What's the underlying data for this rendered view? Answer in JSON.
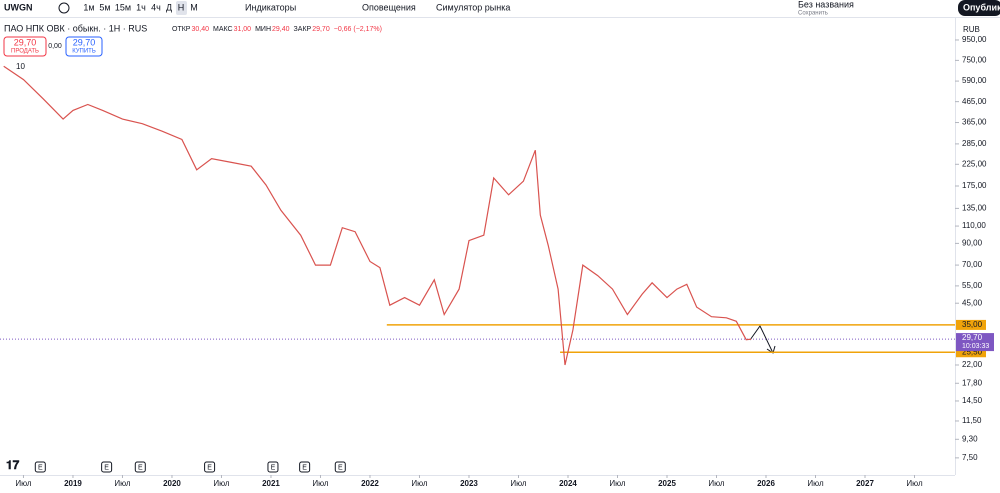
{
  "toolbar": {
    "symbol": "UWGN",
    "intervals": [
      "1м",
      "5м",
      "15м",
      "1ч",
      "4ч",
      "Д",
      "Н",
      "М"
    ],
    "active_interval": 6,
    "indicators": "Индикаторы",
    "alerts": "Оповещения",
    "replay": "Симулятор рынка",
    "layout_name": "Без названия",
    "save": "Сохранить",
    "publish": "Опубликов"
  },
  "legend": {
    "title": "ПАО НПК ОВК · обыкн. · 1Н · RUS",
    "ohlc": [
      {
        "label": "ОТКР",
        "value": "30,40"
      },
      {
        "label": "МАКС",
        "value": "31,00"
      },
      {
        "label": "МИН",
        "value": "29,40"
      },
      {
        "label": "ЗАКР",
        "value": "29,70"
      }
    ],
    "change": "−0,66 (−2,17%)"
  },
  "trade": {
    "sell_price": "29,70",
    "sell": "ПРОДАТЬ",
    "spread": "0,00",
    "buy_price": "29,70",
    "buy": "КУПИТЬ"
  },
  "volume_toggle": "10",
  "chart_data": {
    "type": "line",
    "currency": "RUB",
    "log_scale": true,
    "color": "#d9534f",
    "x": [
      2018.3,
      2018.5,
      2018.7,
      2018.9,
      2019.0,
      2019.15,
      2019.3,
      2019.5,
      2019.7,
      2019.9,
      2020.1,
      2020.25,
      2020.4,
      2020.6,
      2020.8,
      2020.95,
      2021.1,
      2021.3,
      2021.45,
      2021.6,
      2021.72,
      2021.85,
      2022.0,
      2022.1,
      2022.2,
      2022.35,
      2022.5,
      2022.65,
      2022.75,
      2022.9,
      2023.0,
      2023.15,
      2023.25,
      2023.4,
      2023.55,
      2023.67,
      2023.72,
      2023.8,
      2023.9,
      2023.97,
      2024.05,
      2024.15,
      2024.3,
      2024.45,
      2024.6,
      2024.75,
      2024.85,
      2025.0,
      2025.1,
      2025.2,
      2025.3,
      2025.45,
      2025.6,
      2025.7,
      2025.8,
      2025.85
    ],
    "values": [
      700,
      600,
      480,
      380,
      420,
      450,
      420,
      380,
      360,
      330,
      300,
      211,
      240,
      230,
      220,
      177,
      132,
      99,
      70,
      70,
      108,
      103,
      73,
      68,
      44,
      48,
      44,
      59,
      39.5,
      53,
      93,
      99,
      192,
      158,
      185,
      265,
      125,
      88,
      53,
      22,
      33,
      70,
      62,
      53,
      39.5,
      50,
      57,
      48,
      53,
      56,
      43,
      38.5,
      38,
      36.5,
      29.5,
      29.7
    ],
    "xlim": [
      2018.263,
      2027.909
    ],
    "xticks": [
      {
        "value": 2018.5,
        "label": "Июл"
      },
      2019,
      {
        "value": 2019.5,
        "label": "Июл"
      },
      2020,
      {
        "value": 2020.5,
        "label": "Июл"
      },
      2021,
      {
        "value": 2021.5,
        "label": "Июл"
      },
      2022,
      {
        "value": 2022.5,
        "label": "Июл"
      },
      2023,
      {
        "value": 2023.5,
        "label": "Июл"
      },
      2024,
      {
        "value": 2024.5,
        "label": "Июл"
      },
      2025,
      {
        "value": 2025.5,
        "label": "Июл"
      },
      2026,
      {
        "value": 2026.5,
        "label": "Июл"
      },
      2027,
      {
        "value": 2027.5,
        "label": "Июл"
      }
    ],
    "ylim": [
      6.15,
      972
    ],
    "yticks": [
      {
        "value": 950,
        "label": "950,00"
      },
      {
        "value": 750,
        "label": "750,00"
      },
      {
        "value": 590,
        "label": "590,00"
      },
      {
        "value": 465,
        "label": "465,00"
      },
      {
        "value": 365,
        "label": "365,00"
      },
      {
        "value": 285,
        "label": "285,00"
      },
      {
        "value": 225,
        "label": "225,00"
      },
      {
        "value": 175,
        "label": "175,00"
      },
      {
        "value": 135,
        "label": "135,00"
      },
      {
        "value": 110,
        "label": "110,00"
      },
      {
        "value": 90,
        "label": "90,00"
      },
      {
        "value": 70,
        "label": "70,00"
      },
      {
        "value": 55,
        "label": "55,00"
      },
      {
        "value": 45,
        "label": "45,00"
      },
      {
        "value": 22,
        "label": "22,00"
      },
      {
        "value": 17.8,
        "label": "17,80"
      },
      {
        "value": 14.5,
        "label": "14,50"
      },
      {
        "value": 11.5,
        "label": "11,50"
      },
      {
        "value": 9.3,
        "label": "9,30"
      },
      {
        "value": 7.5,
        "label": "7,50"
      }
    ],
    "levels": [
      {
        "value": 35,
        "label": "35,00",
        "start": 2022.17,
        "color": "#f0a30a"
      },
      {
        "value": 25.5,
        "label": "25,50",
        "start": 2023.92,
        "color": "#f0a30a"
      }
    ],
    "last": {
      "value": 29.7,
      "label": "29,70",
      "countdown": "10:03:33",
      "color": "#7e57c2"
    },
    "events": [
      {
        "x": 2018.67,
        "label": "E"
      },
      {
        "x": 2019.34,
        "label": "E"
      },
      {
        "x": 2019.68,
        "label": "E"
      },
      {
        "x": 2020.38,
        "label": "E"
      },
      {
        "x": 2021.02,
        "label": "E"
      },
      {
        "x": 2021.34,
        "label": "E"
      },
      {
        "x": 2021.7,
        "label": "E"
      }
    ]
  }
}
